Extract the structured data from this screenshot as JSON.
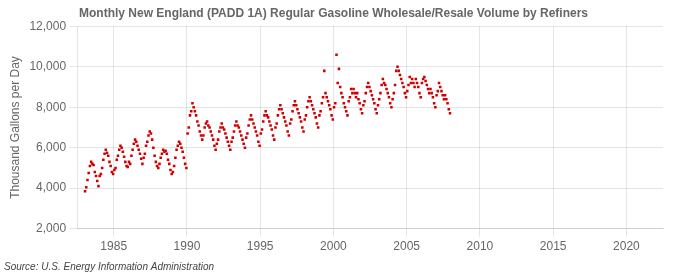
{
  "chart_data": {
    "type": "scatter",
    "title": "Monthly New England (PADD 1A) Regular Gasoline Wholesale/Resale Volume by Refiners",
    "ylabel": "Thousand Gallons per Day",
    "source": "Source: U.S. Energy Information Administration",
    "color": "#cc0000",
    "marker": "square",
    "grid": true,
    "xlim": [
      1982.5,
      2022.5
    ],
    "ylim": [
      2000,
      12000
    ],
    "xticks": [
      1985,
      1990,
      1995,
      2000,
      2005,
      2010,
      2015,
      2020
    ],
    "yticks": [
      {
        "value": 2000,
        "label": "2,000"
      },
      {
        "value": 4000,
        "label": "4,000"
      },
      {
        "value": 6000,
        "label": "6,000"
      },
      {
        "value": 8000,
        "label": "8,000"
      },
      {
        "value": 10000,
        "label": "10,000"
      },
      {
        "value": 12000,
        "label": "12,000"
      }
    ],
    "x": [
      1983.0416666666667,
      1983.125,
      1983.2083333333333,
      1983.2916666666667,
      1983.375,
      1983.4583333333333,
      1983.5416666666667,
      1983.625,
      1983.7083333333333,
      1983.7916666666667,
      1983.875,
      1983.9583333333333,
      1984.0416666666667,
      1984.125,
      1984.2083333333333,
      1984.2916666666667,
      1984.375,
      1984.4583333333333,
      1984.5416666666667,
      1984.625,
      1984.7083333333333,
      1984.7916666666667,
      1984.875,
      1984.9583333333333,
      1985.0416666666667,
      1985.125,
      1985.2083333333333,
      1985.2916666666667,
      1985.375,
      1985.4583333333333,
      1985.5416666666667,
      1985.625,
      1985.7083333333333,
      1985.7916666666667,
      1985.875,
      1985.9583333333333,
      1986.0416666666667,
      1986.125,
      1986.2083333333333,
      1986.2916666666667,
      1986.375,
      1986.4583333333333,
      1986.5416666666667,
      1986.625,
      1986.7083333333333,
      1986.7916666666667,
      1986.875,
      1986.9583333333333,
      1987.0416666666667,
      1987.125,
      1987.2083333333333,
      1987.2916666666667,
      1987.375,
      1987.4583333333333,
      1987.5416666666667,
      1987.625,
      1987.7083333333333,
      1987.7916666666667,
      1987.875,
      1987.9583333333333,
      1988.0416666666667,
      1988.125,
      1988.2083333333333,
      1988.2916666666667,
      1988.375,
      1988.4583333333333,
      1988.5416666666667,
      1988.625,
      1988.7083333333333,
      1988.7916666666667,
      1988.875,
      1988.9583333333333,
      1989.0416666666667,
      1989.125,
      1989.2083333333333,
      1989.2916666666667,
      1989.375,
      1989.4583333333333,
      1989.5416666666667,
      1989.625,
      1989.7083333333333,
      1989.7916666666667,
      1989.875,
      1989.9583333333333,
      1990.0416666666667,
      1990.125,
      1990.2083333333333,
      1990.2916666666667,
      1990.375,
      1990.4583333333333,
      1990.5416666666667,
      1990.625,
      1990.7083333333333,
      1990.7916666666667,
      1990.875,
      1990.9583333333333,
      1991.0416666666667,
      1991.125,
      1991.2083333333333,
      1991.2916666666667,
      1991.375,
      1991.4583333333333,
      1991.5416666666667,
      1991.625,
      1991.7083333333333,
      1991.7916666666667,
      1991.875,
      1991.9583333333333,
      1992.0416666666667,
      1992.125,
      1992.2083333333333,
      1992.2916666666667,
      1992.375,
      1992.4583333333333,
      1992.5416666666667,
      1992.625,
      1992.7083333333333,
      1992.7916666666667,
      1992.875,
      1992.9583333333333,
      1993.0416666666667,
      1993.125,
      1993.2083333333333,
      1993.2916666666667,
      1993.375,
      1993.4583333333333,
      1993.5416666666667,
      1993.625,
      1993.7083333333333,
      1993.7916666666667,
      1993.875,
      1993.9583333333333,
      1994.0416666666667,
      1994.125,
      1994.2083333333333,
      1994.2916666666667,
      1994.375,
      1994.4583333333333,
      1994.5416666666667,
      1994.625,
      1994.7083333333333,
      1994.7916666666667,
      1994.875,
      1994.9583333333333,
      1995.0416666666667,
      1995.125,
      1995.2083333333333,
      1995.2916666666667,
      1995.375,
      1995.4583333333333,
      1995.5416666666667,
      1995.625,
      1995.7083333333333,
      1995.7916666666667,
      1995.875,
      1995.9583333333333,
      1996.0416666666667,
      1996.125,
      1996.2083333333333,
      1996.2916666666667,
      1996.375,
      1996.4583333333333,
      1996.5416666666667,
      1996.625,
      1996.7083333333333,
      1996.7916666666667,
      1996.875,
      1996.9583333333333,
      1997.0416666666667,
      1997.125,
      1997.2083333333333,
      1997.2916666666667,
      1997.375,
      1997.4583333333333,
      1997.5416666666667,
      1997.625,
      1997.7083333333333,
      1997.7916666666667,
      1997.875,
      1997.9583333333333,
      1998.0416666666667,
      1998.125,
      1998.2083333333333,
      1998.2916666666667,
      1998.375,
      1998.4583333333333,
      1998.5416666666667,
      1998.625,
      1998.7083333333333,
      1998.7916666666667,
      1998.875,
      1998.9583333333333,
      1999.0416666666667,
      1999.125,
      1999.2083333333333,
      1999.2916666666667,
      1999.375,
      1999.4583333333333,
      1999.5416666666667,
      1999.625,
      1999.7083333333333,
      1999.7916666666667,
      1999.875,
      1999.9583333333333,
      2000.0416666666667,
      2000.125,
      2000.2083333333333,
      2000.2916666666667,
      2000.375,
      2000.4583333333333,
      2000.5416666666667,
      2000.625,
      2000.7083333333333,
      2000.7916666666667,
      2000.875,
      2000.9583333333333,
      2001.0416666666667,
      2001.125,
      2001.2083333333333,
      2001.2916666666667,
      2001.375,
      2001.4583333333333,
      2001.5416666666667,
      2001.625,
      2001.7083333333333,
      2001.7916666666667,
      2001.875,
      2001.9583333333333,
      2002.0416666666667,
      2002.125,
      2002.2083333333333,
      2002.2916666666667,
      2002.375,
      2002.4583333333333,
      2002.5416666666667,
      2002.625,
      2002.7083333333333,
      2002.7916666666667,
      2002.875,
      2002.9583333333333,
      2003.0416666666667,
      2003.125,
      2003.2083333333333,
      2003.2916666666667,
      2003.375,
      2003.4583333333333,
      2003.5416666666667,
      2003.625,
      2003.7083333333333,
      2003.7916666666667,
      2003.875,
      2003.9583333333333,
      2004.0416666666667,
      2004.125,
      2004.2083333333333,
      2004.2916666666667,
      2004.375,
      2004.4583333333333,
      2004.5416666666667,
      2004.625,
      2004.7083333333333,
      2004.7916666666667,
      2004.875,
      2004.9583333333333,
      2005.0416666666667,
      2005.125,
      2005.2083333333333,
      2005.2916666666667,
      2005.375,
      2005.4583333333333,
      2005.5416666666667,
      2005.625,
      2005.7083333333333,
      2005.7916666666667,
      2005.875,
      2005.9583333333333,
      2006.0416666666667,
      2006.125,
      2006.2083333333333,
      2006.2916666666667,
      2006.375,
      2006.4583333333333,
      2006.5416666666667,
      2006.625,
      2006.7083333333333,
      2006.7916666666667,
      2006.875,
      2006.9583333333333,
      2007.0416666666667,
      2007.125,
      2007.2083333333333,
      2007.2916666666667,
      2007.375,
      2007.4583333333333,
      2007.5416666666667,
      2007.625,
      2007.7083333333333,
      2007.7916666666667,
      2007.875,
      2007.9583333333333
    ],
    "values": [
      3850,
      4050,
      4400,
      4750,
      5100,
      5300,
      5200,
      5150,
      4800,
      4600,
      4350,
      4100,
      4600,
      4700,
      5000,
      5400,
      5700,
      5900,
      5750,
      5600,
      5300,
      5100,
      4800,
      4700,
      4900,
      5000,
      5400,
      5600,
      5900,
      6100,
      6000,
      5800,
      5550,
      5300,
      5100,
      5050,
      5300,
      5200,
      5600,
      5900,
      6200,
      6400,
      6300,
      6100,
      5900,
      5700,
      5450,
      5200,
      5500,
      5700,
      6100,
      6300,
      6600,
      6800,
      6700,
      6400,
      6000,
      5600,
      5300,
      5100,
      5000,
      5200,
      5500,
      5700,
      5900,
      5800,
      5850,
      5700,
      5400,
      5200,
      4900,
      4700,
      4800,
      5100,
      5500,
      5900,
      6100,
      6300,
      6200,
      6000,
      5800,
      5500,
      5200,
      5000,
      6700,
      7000,
      7600,
      7800,
      8200,
      8000,
      7800,
      7600,
      7300,
      7100,
      6800,
      6600,
      6400,
      6600,
      7000,
      7200,
      7300,
      7100,
      7000,
      6800,
      6600,
      6400,
      6100,
      5900,
      6200,
      6400,
      6800,
      7000,
      7200,
      7000,
      6900,
      6700,
      6500,
      6300,
      6100,
      5900,
      6300,
      6500,
      6800,
      7100,
      7300,
      7100,
      7000,
      6800,
      6600,
      6400,
      6200,
      6000,
      6500,
      6700,
      7100,
      7400,
      7600,
      7400,
      7200,
      7000,
      6800,
      6600,
      6300,
      6100,
      6700,
      6900,
      7300,
      7600,
      7800,
      7600,
      7500,
      7300,
      7100,
      6900,
      6600,
      6400,
      7000,
      7200,
      7600,
      7900,
      8100,
      7900,
      7700,
      7500,
      7300,
      7100,
      6800,
      6600,
      7200,
      7400,
      7800,
      8100,
      8300,
      8100,
      7900,
      7700,
      7500,
      7300,
      7000,
      6800,
      7400,
      7600,
      8000,
      8300,
      8500,
      8300,
      8100,
      7900,
      7700,
      7500,
      7200,
      7000,
      7600,
      7800,
      8200,
      8500,
      9800,
      8700,
      8500,
      8300,
      8100,
      7900,
      7600,
      7400,
      8000,
      8200,
      10600,
      9200,
      9900,
      9000,
      8700,
      8500,
      8200,
      8000,
      7800,
      7600,
      8300,
      8500,
      8900,
      8700,
      8900,
      8700,
      8500,
      8700,
      8400,
      8200,
      7900,
      7700,
      8100,
      8300,
      8700,
      9000,
      9200,
      9000,
      8800,
      8600,
      8400,
      8200,
      7900,
      7700,
      8100,
      8400,
      8700,
      9100,
      9400,
      9200,
      9100,
      8900,
      8700,
      8500,
      8200,
      8000,
      8400,
      8700,
      9100,
      9800,
      10000,
      9800,
      9600,
      9400,
      9200,
      9000,
      8700,
      8500,
      8800,
      9100,
      9500,
      9200,
      9400,
      9200,
      9000,
      9400,
      9200,
      9000,
      8700,
      8500,
      9200,
      9400,
      9500,
      9300,
      9100,
      8900,
      8700,
      8900,
      8700,
      8500,
      8200,
      8000,
      8600,
      8800,
      9200,
      9000,
      8800,
      8600,
      8400,
      8600,
      8400,
      8200,
      7900,
      7700
    ]
  }
}
